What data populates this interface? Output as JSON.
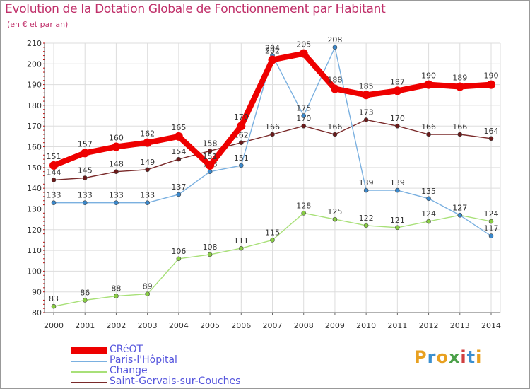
{
  "header": {
    "title": "Evolution de la Dotation Globale de Fonctionnement par Habitant",
    "subtitle": "(en € et par an)"
  },
  "logo": {
    "text": "Proxiti",
    "colors": [
      "#e8a020",
      "#3a8fd0",
      "#e8a020",
      "#4aa048",
      "#d04040",
      "#3a8fd0",
      "#e8a020"
    ]
  },
  "chart_data": {
    "type": "line",
    "title": "Evolution de la Dotation Globale de Fonctionnement par Habitant",
    "subtitle": "(en € et par an)",
    "xlabel": "",
    "ylabel": "",
    "ylim": [
      80,
      210
    ],
    "yticks": [
      80,
      90,
      100,
      110,
      120,
      130,
      140,
      150,
      160,
      170,
      180,
      190,
      200,
      210
    ],
    "grid": true,
    "categories": [
      "2000",
      "2001",
      "2002",
      "2003",
      "2004",
      "2005",
      "2006",
      "2007",
      "2008",
      "2009",
      "2010",
      "2011",
      "2012",
      "2013",
      "2014"
    ],
    "series": [
      {
        "name": "Saint-Gervais-sur-Couches",
        "color": "#7a2a2a",
        "marker": "#6a1a1a",
        "emphasis": false,
        "values": [
          144,
          145,
          148,
          149,
          154,
          158,
          162,
          166,
          170,
          166,
          173,
          170,
          166,
          166,
          164
        ]
      },
      {
        "name": "Change",
        "color": "#a8e078",
        "marker": "#88cc44",
        "emphasis": false,
        "values": [
          83,
          86,
          88,
          89,
          106,
          108,
          111,
          115,
          128,
          125,
          122,
          121,
          124,
          127,
          124
        ]
      },
      {
        "name": "Paris-l'Hôpital",
        "color": "#7ab0e0",
        "marker": "#3a88cc",
        "emphasis": false,
        "values": [
          133,
          133,
          133,
          133,
          137,
          148,
          151,
          204,
          175,
          208,
          139,
          139,
          135,
          127,
          117
        ]
      },
      {
        "name": "CRéOT",
        "color": "#ee0000",
        "marker": "#ee0000",
        "emphasis": true,
        "values": [
          151,
          157,
          160,
          162,
          165,
          151,
          170,
          202,
          205,
          188,
          185,
          187,
          190,
          189,
          190
        ]
      }
    ],
    "legend": {
      "position": "bottom-left",
      "order": [
        "CRéOT",
        "Paris-l'Hôpital",
        "Change",
        "Saint-Gervais-sur-Couches"
      ]
    }
  }
}
